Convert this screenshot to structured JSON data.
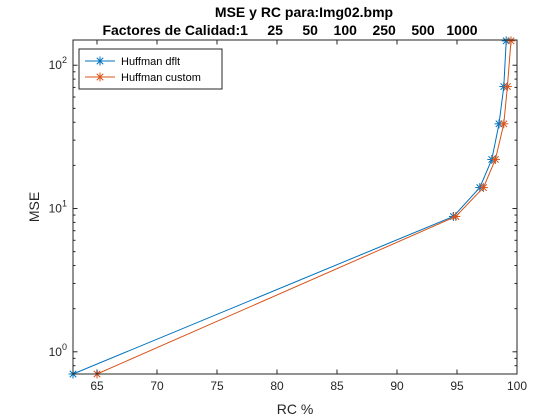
{
  "chart_data": {
    "type": "line",
    "title": "MSE y RC para:Img02.bmp",
    "subtitle": "Factores de Calidad:1     25     50    100    250    500   1000",
    "xlabel": "RC %",
    "ylabel": "MSE",
    "xlim": [
      63,
      100
    ],
    "ylim": [
      0.7,
      150
    ],
    "yscale": "log",
    "xticks": [
      65,
      70,
      75,
      80,
      85,
      90,
      95,
      100
    ],
    "yticks": [
      {
        "value": 1,
        "base": "10",
        "exp": "0"
      },
      {
        "value": 10,
        "base": "10",
        "exp": "1"
      },
      {
        "value": 100,
        "base": "10",
        "exp": "2"
      }
    ],
    "legend_position": "top-left",
    "grid": false,
    "series": [
      {
        "name": "Huffman dflt",
        "color": "#0072BD",
        "marker": "asterisk",
        "x": [
          63.0,
          94.7,
          96.9,
          97.9,
          98.5,
          98.9,
          99.1
        ],
        "y": [
          0.7,
          8.8,
          14.0,
          22.0,
          39.0,
          71.0,
          148.0
        ]
      },
      {
        "name": "Huffman custom",
        "color": "#D95319",
        "marker": "asterisk",
        "x": [
          65.0,
          94.9,
          97.2,
          98.2,
          98.9,
          99.2,
          99.5
        ],
        "y": [
          0.7,
          8.8,
          14.0,
          22.0,
          39.0,
          71.0,
          148.0
        ]
      }
    ]
  }
}
